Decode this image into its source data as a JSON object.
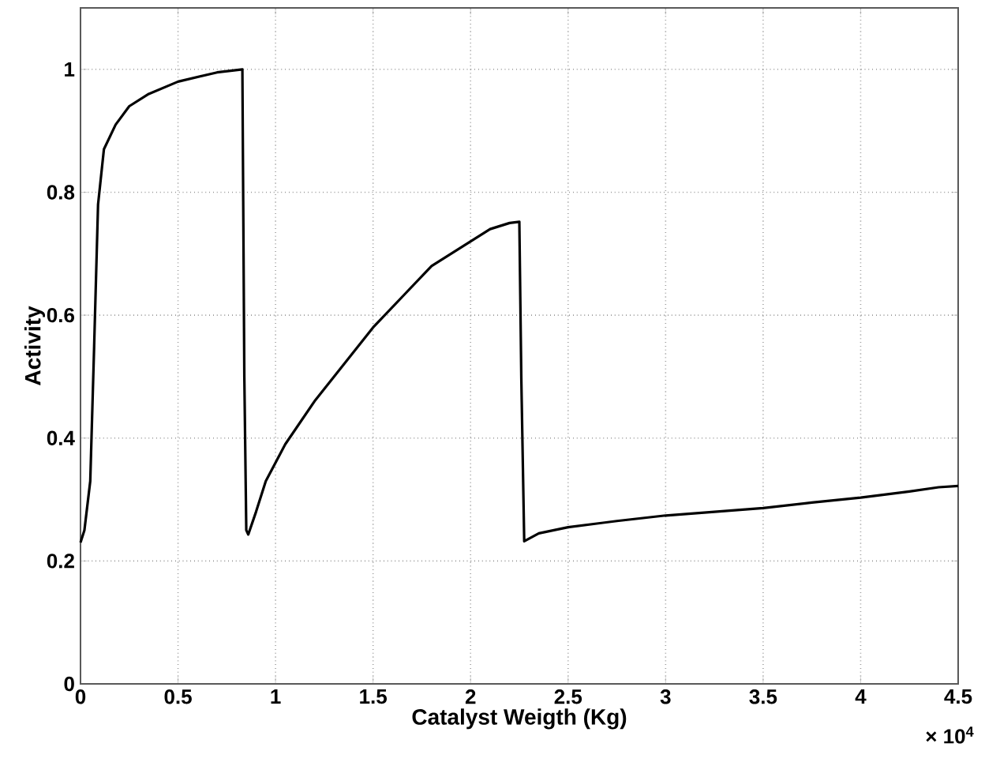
{
  "chart_data": {
    "type": "line",
    "xlabel": "Catalyst Weigth (Kg)",
    "ylabel": "Activity",
    "annotations": [
      "× 10$^{4}$"
    ],
    "x": [
      0,
      0.02,
      0.05,
      0.07,
      0.09,
      0.12,
      0.18,
      0.25,
      0.35,
      0.5,
      0.7,
      0.83,
      0.84,
      0.85,
      0.86,
      0.9,
      0.95,
      1.05,
      1.2,
      1.35,
      1.5,
      1.65,
      1.8,
      1.95,
      2.1,
      2.2,
      2.25,
      2.26,
      2.275,
      2.35,
      2.5,
      2.75,
      3.0,
      3.25,
      3.5,
      3.75,
      4.0,
      4.25,
      4.4,
      4.5
    ],
    "series": [
      {
        "color": "#000000",
        "values": [
          0.23,
          0.25,
          0.33,
          0.55,
          0.78,
          0.87,
          0.91,
          0.94,
          0.96,
          0.98,
          0.995,
          1.0,
          0.5,
          0.25,
          0.243,
          0.28,
          0.33,
          0.39,
          0.46,
          0.52,
          0.58,
          0.63,
          0.68,
          0.71,
          0.74,
          0.75,
          0.752,
          0.5,
          0.232,
          0.245,
          0.255,
          0.265,
          0.274,
          0.28,
          0.286,
          0.295,
          0.303,
          0.313,
          0.32,
          0.322
        ]
      }
    ],
    "xlim": [
      0,
      4.5
    ],
    "ylim": [
      0,
      1.1
    ],
    "xticks": [
      0,
      0.5,
      1,
      1.5,
      2,
      2.5,
      3,
      3.5,
      4,
      4.5
    ],
    "yticks": [
      0,
      0.2,
      0.4,
      0.6,
      0.8,
      1
    ],
    "grid": true,
    "marker": "none",
    "line_style": "solid"
  }
}
